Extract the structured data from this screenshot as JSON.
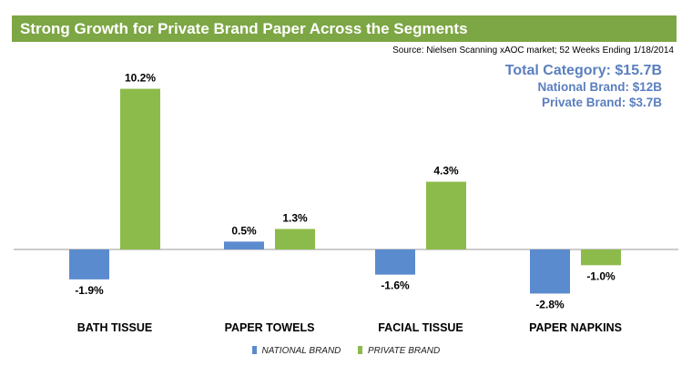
{
  "header": {
    "title": "Strong Growth for Private Brand Paper Across the Segments",
    "source": "Source: Nielsen Scanning xAOC market; 52 Weeks Ending 1/18/2014"
  },
  "summary": {
    "total": "Total Category: $15.7B",
    "national": "National Brand: $12B",
    "private": "Private Brand: $3.7B"
  },
  "colors": {
    "title_bg": "#7da644",
    "national": "#5b8bcf",
    "private": "#8dbb4b",
    "summary_text": "#5a7fbf"
  },
  "chart_data": {
    "type": "bar",
    "title": "Strong Growth for Private Brand Paper Across the Segments",
    "categories": [
      "BATH TISSUE",
      "PAPER TOWELS",
      "FACIAL TISSUE",
      "PAPER NAPKINS"
    ],
    "series": [
      {
        "name": "NATIONAL BRAND",
        "values": [
          -1.9,
          0.5,
          -1.6,
          -2.8
        ],
        "labels": [
          "-1.9%",
          "0.5%",
          "-1.6%",
          "-2.8%"
        ]
      },
      {
        "name": "PRIVATE BRAND",
        "values": [
          10.2,
          1.3,
          4.3,
          -1.0
        ],
        "labels": [
          "10.2%",
          "1.3%",
          "4.3%",
          "-1.0%"
        ]
      }
    ],
    "unit": "%",
    "xlabel": "",
    "ylabel": "",
    "ylim": [
      -3,
      11
    ],
    "grid": false,
    "legend": "bottom"
  }
}
